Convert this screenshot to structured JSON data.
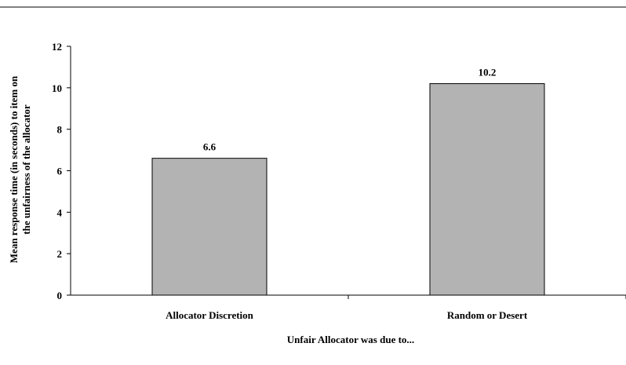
{
  "chart_data": {
    "type": "bar",
    "title": "",
    "categories": [
      "Allocator Discretion",
      "Random or Desert"
    ],
    "values": [
      6.6,
      10.2
    ],
    "value_labels": [
      "6.6",
      "10.2"
    ],
    "xlabel": "Unfair Allocator was due to...",
    "ylabel_lines": [
      "Mean response time (in seconds) to item on",
      "the unfairness of the allocator"
    ],
    "ylim": [
      0,
      12
    ],
    "yticks": [
      0,
      2,
      4,
      6,
      8,
      10,
      12
    ],
    "ytick_labels": [
      "0",
      "2",
      "4",
      "6",
      "8",
      "10",
      "12"
    ],
    "grid": false,
    "legend": "none",
    "colors": {
      "bar_fill": "#b3b3b3",
      "bar_stroke": "#000000",
      "axis": "#000000"
    }
  }
}
